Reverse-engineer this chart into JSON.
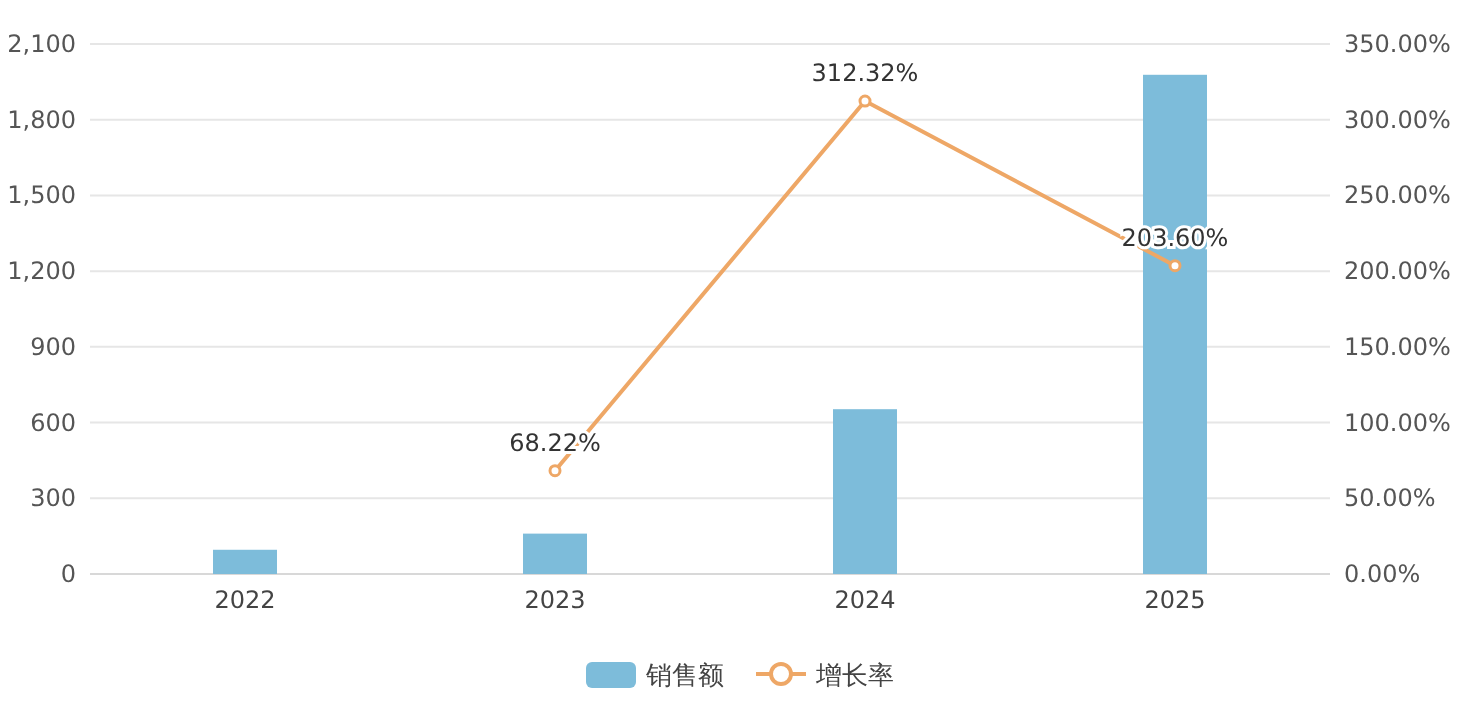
{
  "chart_data": {
    "type": "bar",
    "categories": [
      "2022",
      "2023",
      "2024",
      "2025"
    ],
    "series": [
      {
        "name": "销售额",
        "color": "#7dbcda",
        "values": [
          96,
          160,
          653,
          1978
        ]
      },
      {
        "name": "增长率",
        "type": "line",
        "axis": "y2",
        "color": "#eea766",
        "marker": "circle",
        "values": [
          null,
          68.22,
          312.32,
          203.6
        ],
        "value_labels": [
          null,
          "68.22%",
          "312.32%",
          "203.60%"
        ]
      }
    ],
    "ylim": [
      0,
      2100
    ],
    "yticks": [
      0,
      {
        "value": 300,
        "label": "300"
      },
      {
        "value": 600,
        "label": "600"
      },
      {
        "value": 900,
        "label": "900"
      },
      {
        "value": 1200,
        "label": "1,200"
      },
      {
        "value": 1500,
        "label": "1,500"
      },
      {
        "value": 1800,
        "label": "1,800"
      },
      {
        "value": 2100,
        "label": "2,100"
      }
    ],
    "y2lim": [
      0,
      350
    ],
    "y2ticks": [
      {
        "value": 0,
        "label": "0.00%"
      },
      {
        "value": 50,
        "label": "50.00%"
      },
      {
        "value": 100,
        "label": "100.00%"
      },
      {
        "value": 150,
        "label": "150.00%"
      },
      {
        "value": 200,
        "label": "200.00%"
      },
      {
        "value": 250,
        "label": "250.00%"
      },
      {
        "value": 300,
        "label": "300.00%"
      },
      {
        "value": 350,
        "label": "350.00%"
      }
    ],
    "grid": "y",
    "legend": "bottom"
  }
}
